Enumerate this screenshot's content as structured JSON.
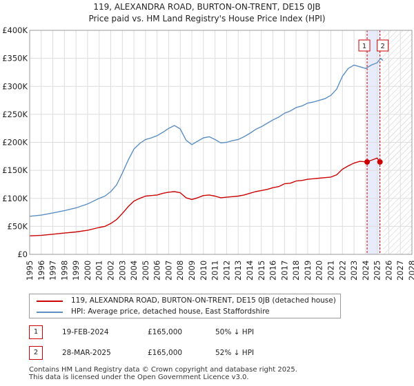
{
  "chart_data": {
    "type": "line",
    "title_line1": "119, ALEXANDRA ROAD, BURTON-ON-TRENT, DE15 0JB",
    "title_line2": "Price paid vs. HM Land Registry's House Price Index (HPI)",
    "xlim": [
      1995,
      2028
    ],
    "ylim": [
      0,
      400000
    ],
    "y_ticks": [
      0,
      50000,
      100000,
      150000,
      200000,
      250000,
      300000,
      350000,
      400000
    ],
    "y_tick_labels": [
      "£0",
      "£50K",
      "£100K",
      "£150K",
      "£200K",
      "£250K",
      "£300K",
      "£350K",
      "£400K"
    ],
    "x_ticks": [
      1995,
      1996,
      1997,
      1998,
      1999,
      2000,
      2001,
      2002,
      2003,
      2004,
      2005,
      2006,
      2007,
      2008,
      2009,
      2010,
      2011,
      2012,
      2013,
      2014,
      2015,
      2016,
      2017,
      2018,
      2019,
      2020,
      2021,
      2022,
      2023,
      2024,
      2025,
      2026,
      2027,
      2028
    ],
    "x_tick_labels": [
      "1995",
      "1996",
      "1997",
      "1998",
      "1999",
      "2000",
      "2001",
      "2002",
      "2003",
      "2004",
      "2005",
      "2006",
      "2007",
      "2008",
      "2009",
      "2010",
      "2011",
      "2012",
      "2013",
      "2014",
      "2015",
      "2016",
      "2017",
      "2018",
      "2019",
      "2020",
      "2021",
      "2022",
      "2023",
      "2024",
      "2025",
      "2026",
      "2027",
      "2028"
    ],
    "grid": true,
    "data_end_year": 2025.5,
    "series": [
      {
        "name": "119, ALEXANDRA ROAD, BURTON-ON-TRENT, DE15 0JB (detached house)",
        "color": "#cc0000",
        "x": [
          1995,
          1996,
          1997,
          1998,
          1999,
          2000,
          2001,
          2001.5,
          2002,
          2002.5,
          2003,
          2003.5,
          2004,
          2004.5,
          2005,
          2005.5,
          2006,
          2006.5,
          2007,
          2007.5,
          2008,
          2008.5,
          2009,
          2009.5,
          2010,
          2010.5,
          2011,
          2011.5,
          2012,
          2012.5,
          2013,
          2013.5,
          2014,
          2014.5,
          2015,
          2015.5,
          2016,
          2016.5,
          2017,
          2017.5,
          2018,
          2018.5,
          2019,
          2019.5,
          2020,
          2020.5,
          2021,
          2021.5,
          2022,
          2022.5,
          2023,
          2023.5,
          2024.13,
          2024.5,
          2025.0,
          2025.24
        ],
        "y": [
          33000,
          34000,
          36000,
          38000,
          40000,
          43000,
          48000,
          50000,
          55000,
          62000,
          73000,
          85000,
          95000,
          100000,
          104000,
          105000,
          106000,
          109000,
          111000,
          112000,
          110000,
          101000,
          98000,
          101000,
          105000,
          106000,
          104000,
          101000,
          102000,
          103000,
          104000,
          106000,
          109000,
          112000,
          114000,
          116000,
          119000,
          121000,
          126000,
          127000,
          131000,
          132000,
          134000,
          135000,
          136000,
          137000,
          138000,
          142000,
          152000,
          158000,
          163000,
          166000,
          165000,
          168000,
          172000,
          165000
        ]
      },
      {
        "name": "HPI: Average price, detached house, East Staffordshire",
        "color": "#5b8ec4",
        "x": [
          1995,
          1996,
          1997,
          1998,
          1999,
          2000,
          2001,
          2001.5,
          2002,
          2002.5,
          2003,
          2003.5,
          2004,
          2004.5,
          2005,
          2005.5,
          2006,
          2006.5,
          2007,
          2007.5,
          2008,
          2008.5,
          2009,
          2009.5,
          2010,
          2010.5,
          2011,
          2011.5,
          2012,
          2012.5,
          2013,
          2013.5,
          2014,
          2014.5,
          2015,
          2015.5,
          2016,
          2016.5,
          2017,
          2017.5,
          2018,
          2018.5,
          2019,
          2019.5,
          2020,
          2020.5,
          2021,
          2021.5,
          2022,
          2022.5,
          2023,
          2023.5,
          2024,
          2024.5,
          2025,
          2025.3,
          2025.5
        ],
        "y": [
          68000,
          70000,
          74000,
          78000,
          83000,
          90000,
          100000,
          104000,
          112000,
          124000,
          145000,
          168000,
          188000,
          198000,
          205000,
          208000,
          212000,
          218000,
          225000,
          230000,
          224000,
          204000,
          196000,
          202000,
          208000,
          210000,
          205000,
          199000,
          200000,
          203000,
          205000,
          210000,
          216000,
          223000,
          228000,
          234000,
          240000,
          245000,
          252000,
          256000,
          262000,
          265000,
          270000,
          272000,
          275000,
          278000,
          284000,
          295000,
          318000,
          332000,
          338000,
          335000,
          332000,
          338000,
          342000,
          350000,
          346000
        ]
      }
    ],
    "transactions": [
      {
        "label": "1",
        "date": "19-FEB-2024",
        "x": 2024.13,
        "price": "£165,000",
        "price_value": 165000,
        "hpi": "50% ↓ HPI"
      },
      {
        "label": "2",
        "date": "28-MAR-2025",
        "x": 2025.24,
        "price": "£165,000",
        "price_value": 165000,
        "hpi": "52% ↓ HPI"
      }
    ]
  },
  "footer": {
    "line1": "Contains HM Land Registry data © Crown copyright and database right 2025.",
    "line2": "This data is licensed under the Open Government Licence v3.0."
  },
  "colors": {
    "price_line": "#cc0000",
    "hpi_line": "#5b8ec4",
    "grid": "#dddddd",
    "highlight": "#e8ecfa"
  }
}
